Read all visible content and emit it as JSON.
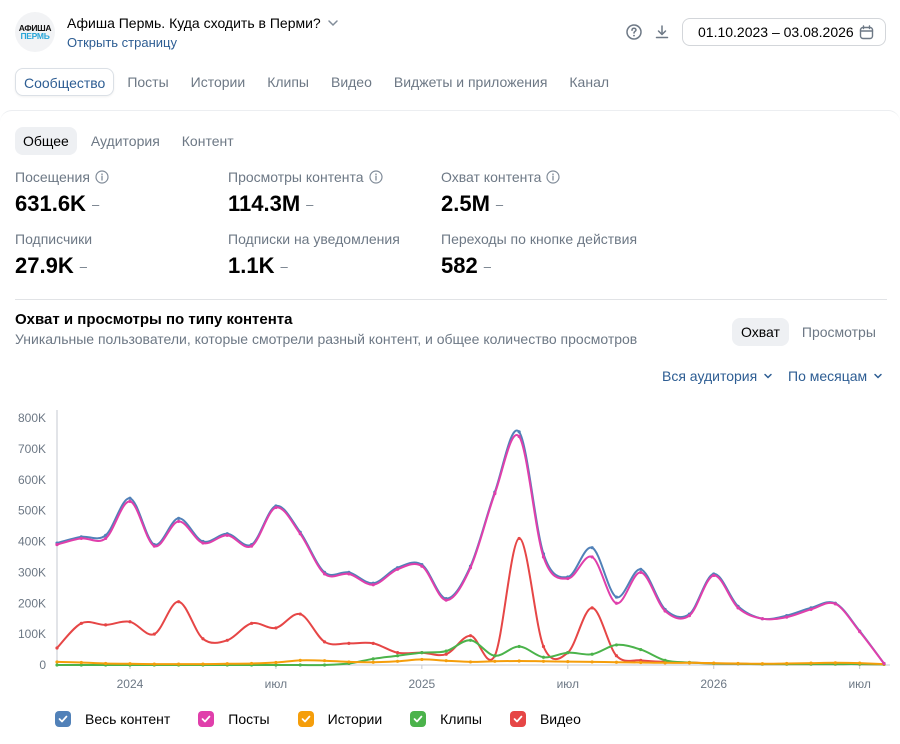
{
  "header": {
    "logo_line1": "АФИША",
    "logo_line2": "ПЕРМЬ",
    "group_title": "Афиша Пермь. Куда сходить в Перми?",
    "open_page": "Открыть страницу",
    "date_range": "01.10.2023 – 03.08.2026"
  },
  "tabs": [
    "Сообщество",
    "Посты",
    "Истории",
    "Клипы",
    "Видео",
    "Виджеты и приложения",
    "Канал"
  ],
  "subtabs": [
    "Общее",
    "Аудитория",
    "Контент"
  ],
  "metrics": [
    {
      "label": "Посещения",
      "value": "631.6K",
      "dash": "–",
      "info": true
    },
    {
      "label": "Просмотры контента",
      "value": "114.3M",
      "dash": "–",
      "info": true
    },
    {
      "label": "Охват контента",
      "value": "2.5M",
      "dash": "–",
      "info": true
    },
    {
      "label": "Подписчики",
      "value": "27.9K",
      "dash": "–",
      "info": false
    },
    {
      "label": "Подписки на уведомления",
      "value": "1.1K",
      "dash": "–",
      "info": false
    },
    {
      "label": "Переходы по кнопке действия",
      "value": "582",
      "dash": "–",
      "info": false
    }
  ],
  "chart_section": {
    "title": "Охват и просмотры по типу контента",
    "subtitle": "Уникальные пользователи, которые смотрели разный контент, и общее количество просмотров",
    "toggle": [
      "Охват",
      "Просмотры"
    ],
    "audience_dropdown": "Вся аудитория",
    "period_dropdown": "По месяцам"
  },
  "colors": {
    "all": "#5181b8",
    "posts": "#e03fab",
    "stories": "#f59e0b",
    "clips": "#4bb34b",
    "video": "#e64646",
    "link": "#2d5d93",
    "muted": "#6d7885"
  },
  "chart_data": {
    "type": "line",
    "y_ticks": [
      "0",
      "100K",
      "200K",
      "300K",
      "400K",
      "500K",
      "600K",
      "700K",
      "800K"
    ],
    "ylim": [
      0,
      800000
    ],
    "x_ticks": [
      "2024",
      "июл",
      "2025",
      "июл",
      "2026",
      "июл"
    ],
    "x": [
      "2023-10",
      "2023-11",
      "2023-12",
      "2024-01",
      "2024-02",
      "2024-03",
      "2024-04",
      "2024-05",
      "2024-06",
      "2024-07",
      "2024-08",
      "2024-09",
      "2024-10",
      "2024-11",
      "2024-12",
      "2025-01",
      "2025-02",
      "2025-03",
      "2025-04",
      "2025-05",
      "2025-06",
      "2025-07",
      "2025-08",
      "2025-09",
      "2025-10",
      "2025-11",
      "2025-12",
      "2026-01",
      "2026-02",
      "2026-03",
      "2026-04",
      "2026-05",
      "2026-06",
      "2026-07",
      "2026-08"
    ],
    "series": [
      {
        "name": "Весь контент",
        "key": "all",
        "values": [
          395000,
          415000,
          420000,
          540000,
          390000,
          475000,
          400000,
          425000,
          390000,
          515000,
          430000,
          300000,
          300000,
          265000,
          315000,
          325000,
          215000,
          320000,
          560000,
          755000,
          360000,
          285000,
          380000,
          220000,
          310000,
          180000,
          165000,
          295000,
          190000,
          150000,
          160000,
          185000,
          200000,
          110000,
          5000
        ]
      },
      {
        "name": "Посты",
        "key": "posts",
        "values": [
          390000,
          410000,
          410000,
          530000,
          385000,
          465000,
          395000,
          420000,
          385000,
          510000,
          425000,
          295000,
          295000,
          260000,
          310000,
          320000,
          210000,
          315000,
          555000,
          740000,
          350000,
          280000,
          350000,
          200000,
          300000,
          175000,
          160000,
          290000,
          185000,
          150000,
          155000,
          180000,
          198000,
          108000,
          5000
        ]
      },
      {
        "name": "Истории",
        "key": "stories",
        "values": [
          10000,
          8000,
          5000,
          4000,
          3000,
          3000,
          3000,
          4000,
          5000,
          8000,
          15000,
          14000,
          10000,
          9000,
          12000,
          18000,
          14000,
          10000,
          12000,
          13000,
          12000,
          11000,
          10000,
          9000,
          8000,
          7000,
          7000,
          6000,
          5000,
          4000,
          5000,
          6000,
          7000,
          6000,
          3000
        ]
      },
      {
        "name": "Клипы",
        "key": "clips",
        "values": [
          0,
          0,
          0,
          0,
          0,
          0,
          0,
          0,
          0,
          0,
          0,
          0,
          5000,
          20000,
          30000,
          40000,
          45000,
          80000,
          30000,
          60000,
          25000,
          40000,
          35000,
          65000,
          50000,
          15000,
          8000,
          5000,
          4000,
          3000,
          3000,
          3000,
          3000,
          3000,
          2000
        ]
      },
      {
        "name": "Видео",
        "key": "video",
        "values": [
          55000,
          135000,
          130000,
          140000,
          100000,
          205000,
          85000,
          80000,
          135000,
          120000,
          165000,
          75000,
          70000,
          70000,
          40000,
          40000,
          35000,
          95000,
          30000,
          410000,
          60000,
          40000,
          185000,
          30000,
          15000,
          10000,
          8000,
          5000,
          4000,
          3000,
          3000,
          3000,
          3000,
          3000,
          2000
        ]
      }
    ],
    "legend_position": "bottom",
    "grid": false
  }
}
